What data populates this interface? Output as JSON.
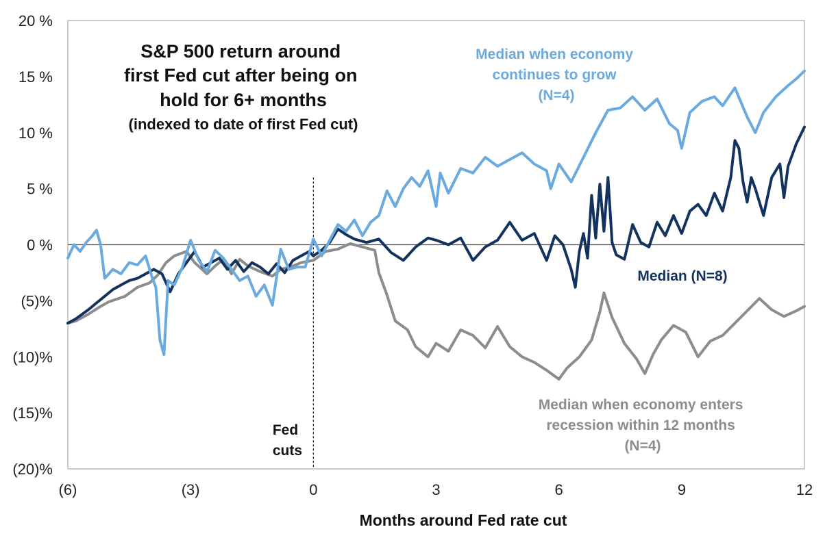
{
  "chart_data": {
    "type": "line",
    "title_lines": [
      "S&P 500 return around",
      "first Fed cut after being on",
      "hold for 6+ months"
    ],
    "subtitle": "(indexed to date of first Fed cut)",
    "xlabel": "Months around Fed rate cut",
    "ylabel": "",
    "xlim": [
      -6,
      12
    ],
    "ylim": [
      -20,
      20
    ],
    "x_ticks": [
      -6,
      -3,
      0,
      3,
      6,
      9,
      12
    ],
    "x_tick_labels": [
      "(6)",
      "(3)",
      "0",
      "3",
      "6",
      "9",
      "12"
    ],
    "y_ticks": [
      20,
      15,
      10,
      5,
      0,
      -5,
      -10,
      -15,
      -20
    ],
    "y_tick_labels": [
      "20 %",
      "15 %",
      "10 %",
      "5 %",
      "0 %",
      "(5)%",
      "(10)%",
      "(15)%",
      "(20)%"
    ],
    "grid": false,
    "reference_line": {
      "x": 0,
      "label_lines": [
        "Fed",
        "cuts"
      ]
    },
    "annotations": {
      "grow": [
        "Median when economy",
        "continues to grow",
        "(N=4)"
      ],
      "median": [
        "Median (N=8)"
      ],
      "recession": [
        "Median when economy  enters",
        "recession within 12 months",
        "(N=4)"
      ]
    },
    "series": [
      {
        "key": "recession",
        "color": "#8c8c8c",
        "x": [
          -6,
          -5.8,
          -5.5,
          -5.2,
          -5,
          -4.6,
          -4.3,
          -4,
          -3.8,
          -3.6,
          -3.4,
          -3.1,
          -2.9,
          -2.6,
          -2.4,
          -2.2,
          -2,
          -1.8,
          -1.6,
          -1.3,
          -1,
          -0.8,
          -0.5,
          -0.3,
          0,
          0.3,
          0.6,
          0.9,
          1.2,
          1.5,
          1.6,
          1.8,
          2.0,
          2.3,
          2.5,
          2.8,
          3.0,
          3.3,
          3.6,
          3.9,
          4.2,
          4.5,
          4.8,
          5.1,
          5.4,
          5.7,
          6.0,
          6.2,
          6.5,
          6.8,
          7.0,
          7.1,
          7.3,
          7.6,
          7.9,
          8.1,
          8.3,
          8.5,
          8.8,
          9.1,
          9.4,
          9.7,
          10.0,
          10.3,
          10.6,
          10.9,
          11.2,
          11.5,
          11.8,
          12.0
        ],
        "values": [
          -7.0,
          -6.8,
          -6.2,
          -5.5,
          -5.1,
          -4.6,
          -3.8,
          -3.4,
          -2.7,
          -1.6,
          -1.0,
          -0.6,
          -1.6,
          -2.6,
          -1.9,
          -1.3,
          -2.6,
          -1.3,
          -1.9,
          -2.4,
          -2.8,
          -2.2,
          -1.9,
          -1.6,
          -1.4,
          -0.6,
          -0.4,
          0.1,
          -0.2,
          -0.5,
          -2.5,
          -4.5,
          -6.8,
          -7.6,
          -9.1,
          -10.0,
          -8.8,
          -9.5,
          -7.6,
          -8.1,
          -9.2,
          -7.3,
          -9.1,
          -10.0,
          -10.5,
          -11.2,
          -12.0,
          -11.0,
          -10.0,
          -8.5,
          -6.0,
          -4.3,
          -6.5,
          -8.8,
          -10.2,
          -11.5,
          -9.8,
          -8.5,
          -7.2,
          -7.8,
          -10.0,
          -8.6,
          -8.1,
          -7.0,
          -5.9,
          -4.8,
          -5.8,
          -6.4,
          -5.9,
          -5.5
        ]
      },
      {
        "key": "median",
        "color": "#13335e",
        "x": [
          -6,
          -5.8,
          -5.5,
          -5.3,
          -5.1,
          -4.9,
          -4.7,
          -4.5,
          -4.3,
          -4.1,
          -3.9,
          -3.7,
          -3.5,
          -3.3,
          -3.1,
          -2.9,
          -2.7,
          -2.5,
          -2.3,
          -2.1,
          -1.9,
          -1.7,
          -1.5,
          -1.3,
          -1.1,
          -0.9,
          -0.7,
          -0.5,
          -0.3,
          -0.1,
          0,
          0.2,
          0.4,
          0.6,
          0.8,
          1.0,
          1.3,
          1.6,
          1.9,
          2.2,
          2.5,
          2.8,
          3.0,
          3.3,
          3.6,
          3.9,
          4.2,
          4.5,
          4.8,
          5.1,
          5.4,
          5.7,
          5.9,
          6.1,
          6.3,
          6.4,
          6.5,
          6.6,
          6.7,
          6.8,
          6.9,
          7.0,
          7.1,
          7.2,
          7.3,
          7.4,
          7.6,
          7.8,
          8.0,
          8.2,
          8.4,
          8.6,
          8.8,
          9.0,
          9.2,
          9.4,
          9.6,
          9.8,
          10.0,
          10.2,
          10.3,
          10.4,
          10.5,
          10.6,
          10.7,
          10.8,
          11.0,
          11.2,
          11.4,
          11.5,
          11.6,
          11.8,
          12.0
        ],
        "values": [
          -7.0,
          -6.6,
          -5.8,
          -5.2,
          -4.6,
          -4.0,
          -3.6,
          -3.2,
          -3.0,
          -2.6,
          -2.2,
          -2.6,
          -4.2,
          -2.6,
          -1.6,
          -0.6,
          -2.0,
          -1.6,
          -1.2,
          -2.2,
          -1.4,
          -2.4,
          -1.6,
          -2.0,
          -2.6,
          -1.7,
          -2.5,
          -1.4,
          -1.0,
          -0.6,
          -1.0,
          -0.5,
          0.2,
          1.4,
          0.9,
          0.5,
          0.2,
          0.5,
          -0.7,
          -1.4,
          -0.2,
          0.6,
          0.4,
          0.0,
          0.6,
          -1.4,
          -0.2,
          0.4,
          2.0,
          0.4,
          1.0,
          -1.4,
          0.8,
          0.0,
          -2.2,
          -3.8,
          -0.6,
          1.0,
          -1.2,
          4.4,
          0.6,
          5.4,
          1.2,
          6.0,
          0.2,
          -0.9,
          -1.3,
          1.8,
          0.2,
          -0.2,
          2.0,
          0.8,
          2.6,
          1.0,
          3.0,
          3.6,
          2.6,
          4.6,
          3.0,
          6.0,
          9.3,
          8.6,
          5.6,
          3.8,
          6.0,
          5.0,
          2.6,
          6.0,
          7.2,
          4.2,
          7.0,
          9.0,
          10.5
        ]
      },
      {
        "key": "grow",
        "color": "#6aaade",
        "x": [
          -6,
          -5.85,
          -5.7,
          -5.55,
          -5.4,
          -5.3,
          -5.2,
          -5.1,
          -4.9,
          -4.7,
          -4.5,
          -4.3,
          -4.1,
          -3.95,
          -3.85,
          -3.75,
          -3.65,
          -3.55,
          -3.4,
          -3.2,
          -3.0,
          -2.8,
          -2.6,
          -2.4,
          -2.2,
          -2.0,
          -1.8,
          -1.6,
          -1.4,
          -1.2,
          -1.0,
          -0.8,
          -0.6,
          -0.4,
          -0.2,
          0,
          0.2,
          0.4,
          0.6,
          0.8,
          1.0,
          1.2,
          1.4,
          1.6,
          1.8,
          2.0,
          2.2,
          2.4,
          2.6,
          2.8,
          3.0,
          3.1,
          3.3,
          3.6,
          3.9,
          4.2,
          4.5,
          4.8,
          5.1,
          5.4,
          5.7,
          5.8,
          6.0,
          6.3,
          6.6,
          6.9,
          7.2,
          7.5,
          7.8,
          8.1,
          8.4,
          8.7,
          8.9,
          9.0,
          9.2,
          9.5,
          9.8,
          10.0,
          10.3,
          10.6,
          10.8,
          11.0,
          11.3,
          11.6,
          11.8,
          12.0
        ],
        "values": [
          -1.2,
          0.0,
          -0.6,
          0.2,
          0.8,
          1.3,
          0.0,
          -3.0,
          -2.2,
          -2.6,
          -1.6,
          -1.8,
          -1.0,
          -2.8,
          -3.8,
          -8.5,
          -9.8,
          -3.2,
          -3.6,
          -2.0,
          0.4,
          -1.4,
          -2.4,
          -0.5,
          -1.2,
          -2.2,
          -3.2,
          -2.8,
          -4.6,
          -3.6,
          -5.4,
          -0.4,
          -2.2,
          -2.0,
          -2.0,
          0.5,
          -1.0,
          0.4,
          1.8,
          1.2,
          2.2,
          0.8,
          2.0,
          2.6,
          4.8,
          3.4,
          5.0,
          6.0,
          5.2,
          6.6,
          3.4,
          6.4,
          4.6,
          6.8,
          6.4,
          7.8,
          7.0,
          7.6,
          8.2,
          7.2,
          6.6,
          5.0,
          7.2,
          5.6,
          7.8,
          10.0,
          12.0,
          12.2,
          13.2,
          12.0,
          13.0,
          10.8,
          10.2,
          8.6,
          11.8,
          12.8,
          13.2,
          12.4,
          14.0,
          11.4,
          10.0,
          11.8,
          13.2,
          14.2,
          14.8,
          15.5
        ]
      }
    ]
  }
}
